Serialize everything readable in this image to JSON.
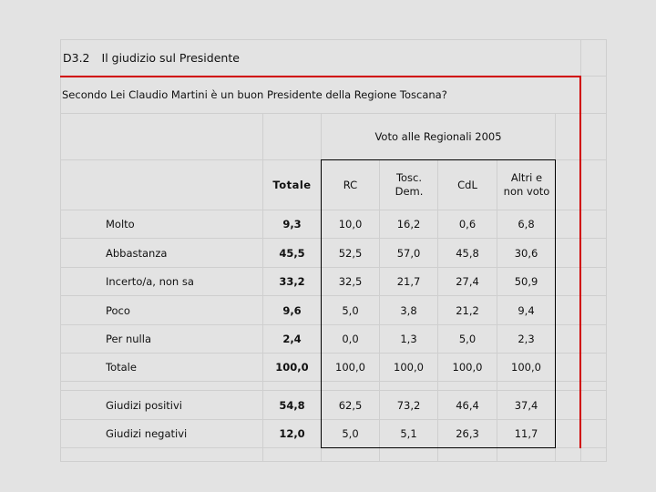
{
  "title": {
    "code": "D3.2",
    "text": "Il giudizio sul Presidente"
  },
  "question": "Secondo Lei Claudio Martini è un buon Presidente della Regione Toscana?",
  "group_header": "Voto alle Regionali 2005",
  "columns": {
    "total": "Totale",
    "rc": "RC",
    "tosc_dem": "Tosc. Dem.",
    "cdl": "CdL",
    "altri": "Altri e non voto"
  },
  "rows": [
    {
      "label": "Molto",
      "values": [
        "9,3",
        "10,0",
        "16,2",
        "0,6",
        "6,8"
      ]
    },
    {
      "label": "Abbastanza",
      "values": [
        "45,5",
        "52,5",
        "57,0",
        "45,8",
        "30,6"
      ]
    },
    {
      "label": "Incerto/a, non sa",
      "values": [
        "33,2",
        "32,5",
        "21,7",
        "27,4",
        "50,9"
      ]
    },
    {
      "label": "Poco",
      "values": [
        "9,6",
        "5,0",
        "3,8",
        "21,2",
        "9,4"
      ]
    },
    {
      "label": "Per nulla",
      "values": [
        "2,4",
        "0,0",
        "1,3",
        "5,0",
        "2,3"
      ]
    },
    {
      "label": "Totale",
      "values": [
        "100,0",
        "100,0",
        "100,0",
        "100,0",
        "100,0"
      ]
    },
    {
      "label": "Giudizi positivi",
      "values": [
        "54,8",
        "62,5",
        "73,2",
        "46,4",
        "37,4"
      ]
    },
    {
      "label": "Giudizi negativi",
      "values": [
        "12,0",
        "5,0",
        "5,1",
        "26,3",
        "11,7"
      ]
    }
  ],
  "colors": {
    "accent_rule": "#d00000",
    "grid": "#cfcfcf",
    "background": "#e3e3e3"
  }
}
